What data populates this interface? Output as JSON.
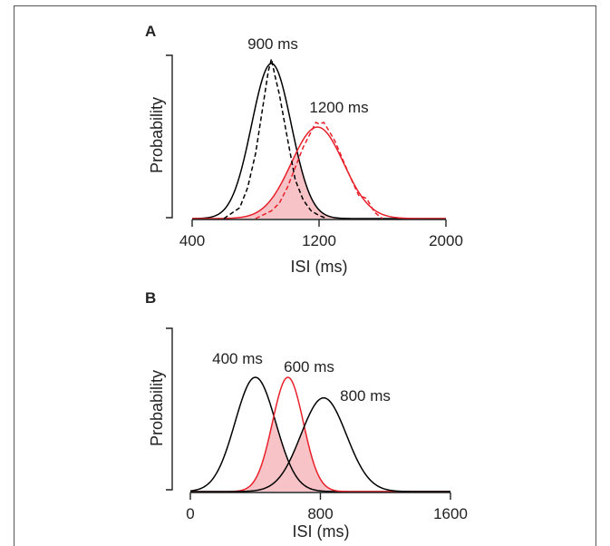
{
  "chart_data": [
    {
      "panel": "A",
      "type": "line",
      "xlabel": "ISI (ms)",
      "ylabel": "Probability",
      "xlim": [
        400,
        2000
      ],
      "xticks": [
        400,
        1200,
        2000
      ],
      "grid": false,
      "legend": "none",
      "series": [
        {
          "name": "900 ms",
          "kind": "model",
          "mean": 900,
          "sd": 125,
          "peak": 1.0,
          "color": "#000000",
          "dash": false
        },
        {
          "name": "1200 ms",
          "kind": "model",
          "mean": 1190,
          "sd": 165,
          "peak": 0.59,
          "color": "#e8202a",
          "dash": false
        },
        {
          "name": "900 ms",
          "kind": "empirical",
          "color": "#000000",
          "dash": true,
          "x": [
            600,
            700,
            750,
            800,
            850,
            880,
            900,
            920,
            950,
            1000,
            1050,
            1100,
            1150,
            1200,
            1250
          ],
          "y": [
            0.0,
            0.07,
            0.2,
            0.42,
            0.75,
            0.95,
            1.03,
            0.93,
            0.8,
            0.52,
            0.25,
            0.12,
            0.05,
            0.02,
            0.0
          ]
        },
        {
          "name": "1200 ms",
          "kind": "empirical",
          "color": "#e8202a",
          "dash": true,
          "x": [
            800,
            900,
            950,
            1000,
            1050,
            1100,
            1150,
            1180,
            1200,
            1230,
            1260,
            1300,
            1350,
            1400,
            1450,
            1500,
            1550,
            1600
          ],
          "y": [
            0.0,
            0.05,
            0.1,
            0.2,
            0.33,
            0.46,
            0.56,
            0.62,
            0.61,
            0.62,
            0.57,
            0.5,
            0.38,
            0.26,
            0.15,
            0.13,
            0.04,
            0.0
          ]
        }
      ],
      "labels": [
        "900 ms",
        "1200 ms"
      ],
      "shaded_overlap": {
        "color": "#f7c3c7",
        "between": [
          "900 ms",
          "1200 ms"
        ]
      }
    },
    {
      "panel": "B",
      "type": "line",
      "xlabel": "ISI (ms)",
      "ylabel": "Probability",
      "xlim": [
        0,
        1600
      ],
      "xticks": [
        0,
        800,
        1600
      ],
      "grid": false,
      "legend": "none",
      "series": [
        {
          "name": "400 ms",
          "kind": "model",
          "mean": 400,
          "sd": 125,
          "peak": 1.0,
          "color": "#000000",
          "dash": false
        },
        {
          "name": "600 ms",
          "kind": "model",
          "mean": 600,
          "sd": 95,
          "peak": 1.0,
          "color": "#e8202a",
          "dash": false
        },
        {
          "name": "800 ms",
          "kind": "model",
          "mean": 820,
          "sd": 140,
          "peak": 0.82,
          "color": "#000000",
          "dash": false
        }
      ],
      "labels": [
        "400 ms",
        "600 ms",
        "800 ms"
      ],
      "shaded_overlap": {
        "color": "#f7c3c7",
        "between": [
          "600 ms",
          "400 ms|800 ms"
        ]
      }
    }
  ]
}
